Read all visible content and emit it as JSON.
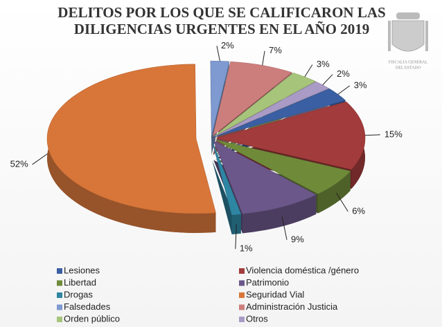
{
  "chart_data": {
    "type": "pie",
    "title": "DELITOS POR LOS QUE SE CALIFICARON LAS DILIGENCIAS URGENTES EN EL AÑO 2019",
    "series": [
      {
        "name": "Lesiones",
        "color": "#3a5fa3",
        "value": 3,
        "value_label": "3%"
      },
      {
        "name": "Violencia doméstica /género",
        "color": "#a23b3b",
        "value": 15,
        "value_label": "15%"
      },
      {
        "name": "Libertad",
        "color": "#6f8b3a",
        "value": 6,
        "value_label": "6%"
      },
      {
        "name": "Patrimonio",
        "color": "#6b5789",
        "value": 9,
        "value_label": "9%"
      },
      {
        "name": "Drogas",
        "color": "#2e86a3",
        "value": 1,
        "value_label": "1%"
      },
      {
        "name": "Seguridad Vial",
        "color": "#d8763a",
        "value": 52,
        "value_label": "52%"
      },
      {
        "name": "Falsedades",
        "color": "#7e9ad0",
        "value": 2,
        "value_label": "2%"
      },
      {
        "name": "Administración Justicia",
        "color": "#cc7e7d",
        "value": 7,
        "value_label": "7%"
      },
      {
        "name": "Orden público",
        "color": "#a6c47a",
        "value": 3,
        "value_label": "3%"
      },
      {
        "name": "Otros",
        "color": "#a99bc6",
        "value": 2,
        "value_label": "2%"
      }
    ]
  },
  "logo_text": [
    "FISCALIA GENERAL",
    "DEL ESTADO"
  ]
}
